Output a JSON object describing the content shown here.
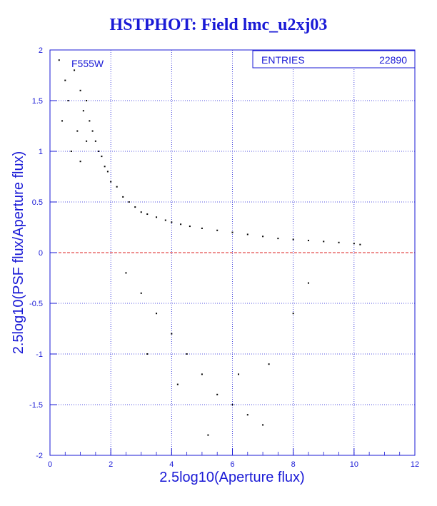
{
  "title": "HSTPHOT: Field lmc_u2xj03",
  "chart_data": {
    "type": "scatter",
    "title": "HSTPHOT: Field lmc_u2xj03",
    "xlabel": "2.5log10(Aperture flux)",
    "ylabel": "2.5log10(PSF flux/Aperture flux)",
    "xlim": [
      0,
      12
    ],
    "ylim": [
      -2,
      2
    ],
    "xticks": [
      0,
      2,
      4,
      6,
      8,
      10,
      12
    ],
    "yticks": [
      -2,
      -1.5,
      -1,
      -0.5,
      0,
      0.5,
      1,
      1.5,
      2
    ],
    "grid": true,
    "filter_label": "F555W",
    "stats": {
      "label": "ENTRIES",
      "value": "22890"
    },
    "reference_line": {
      "y": 0,
      "style": "dashed",
      "color": "#dd2222"
    },
    "colors": {
      "axis": "#1a1ad6",
      "points": "#000000",
      "reference": "#dd2222",
      "background": "#ffffff"
    },
    "series": [
      {
        "points": [
          [
            0.3,
            1.9
          ],
          [
            0.5,
            1.7
          ],
          [
            0.6,
            1.5
          ],
          [
            0.4,
            1.3
          ],
          [
            0.8,
            1.8
          ],
          [
            1.0,
            1.6
          ],
          [
            1.1,
            1.4
          ],
          [
            1.2,
            1.5
          ],
          [
            1.3,
            1.3
          ],
          [
            0.9,
            1.2
          ],
          [
            1.5,
            1.1
          ],
          [
            1.6,
            1.0
          ],
          [
            1.7,
            0.95
          ],
          [
            1.8,
            0.85
          ],
          [
            1.9,
            0.8
          ],
          [
            2.0,
            0.7
          ],
          [
            1.4,
            1.2
          ],
          [
            1.2,
            1.1
          ],
          [
            1.0,
            0.9
          ],
          [
            0.7,
            1.0
          ],
          [
            2.2,
            0.65
          ],
          [
            2.4,
            0.55
          ],
          [
            2.6,
            0.5
          ],
          [
            2.8,
            0.45
          ],
          [
            3.0,
            0.4
          ],
          [
            3.2,
            0.38
          ],
          [
            3.5,
            0.35
          ],
          [
            3.8,
            0.32
          ],
          [
            4.0,
            0.3
          ],
          [
            4.3,
            0.28
          ],
          [
            4.6,
            0.26
          ],
          [
            5.0,
            0.24
          ],
          [
            5.5,
            0.22
          ],
          [
            6.0,
            0.2
          ],
          [
            6.5,
            0.18
          ],
          [
            7.0,
            0.16
          ],
          [
            7.5,
            0.14
          ],
          [
            8.0,
            0.13
          ],
          [
            8.5,
            0.12
          ],
          [
            9.0,
            0.11
          ],
          [
            9.5,
            0.1
          ],
          [
            10.0,
            0.09
          ],
          [
            10.2,
            0.08
          ],
          [
            2.5,
            -0.2
          ],
          [
            3.0,
            -0.4
          ],
          [
            3.5,
            -0.6
          ],
          [
            4.0,
            -0.8
          ],
          [
            4.5,
            -1.0
          ],
          [
            5.0,
            -1.2
          ],
          [
            5.5,
            -1.4
          ],
          [
            6.0,
            -1.5
          ],
          [
            6.5,
            -1.6
          ],
          [
            7.0,
            -1.7
          ],
          [
            3.2,
            -1.0
          ],
          [
            4.2,
            -1.3
          ],
          [
            5.2,
            -1.8
          ],
          [
            6.2,
            -1.2
          ],
          [
            7.2,
            -1.1
          ],
          [
            8.0,
            -0.6
          ],
          [
            8.5,
            -0.3
          ]
        ]
      }
    ]
  }
}
